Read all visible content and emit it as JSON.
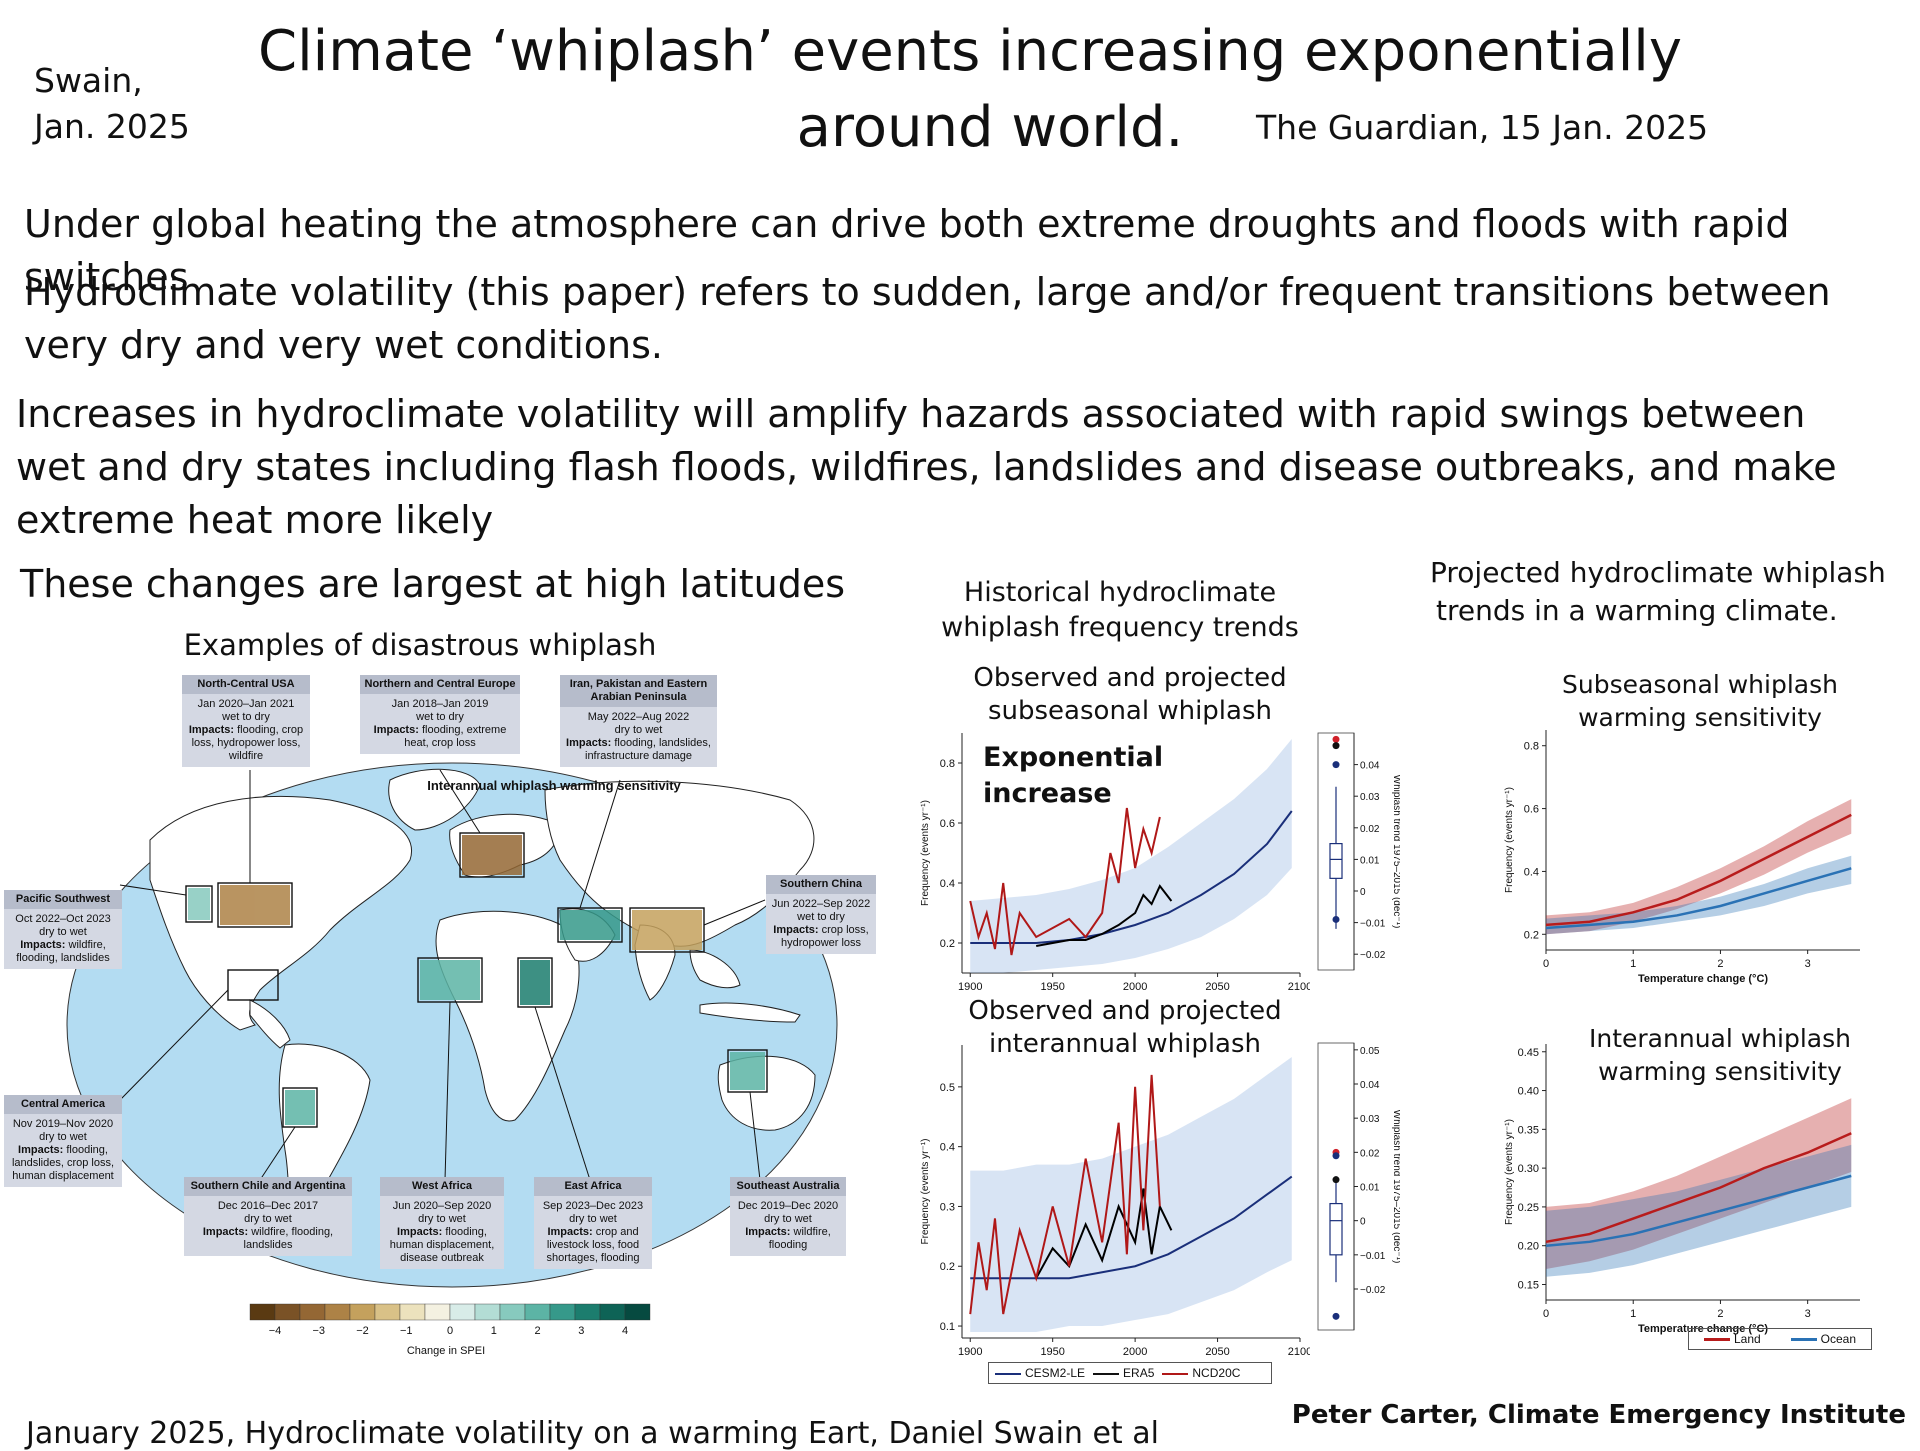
{
  "header": {
    "author_line1": "Swain,",
    "author_line2": "Jan. 2025",
    "title_line1": "Climate ‘whiplash’ events increasing exponentially",
    "title_line2": "around world.",
    "source": "The Guardian, 15 Jan. 2025"
  },
  "text": {
    "p1": "Under global heating the atmosphere can drive both extreme droughts and floods with rapid switches",
    "p2_line1": "Hydroclimate volatility (this paper) refers to sudden, large and/or frequent transitions between",
    "p2_line2": "very dry and very wet conditions.",
    "p3_line1": "Increases in hydroclimate volatility will amplify hazards associated with rapid swings between",
    "p3_line2": "wet and dry states including flash floods, wildfires, landslides and disease outbreaks, and make",
    "p3_line3": "extreme heat more likely",
    "p4": "These changes are largest at high latitudes"
  },
  "map": {
    "title": "Examples of disastrous whiplash",
    "inner_title": "Interannual whiplash warming sensitivity",
    "colorbar_ticks": [
      "−4",
      "−3",
      "−2",
      "−1",
      "0",
      "1",
      "2",
      "3",
      "4"
    ],
    "colorbar_label": "Change in SPEI",
    "colorbar_colors": [
      "#5a3a12",
      "#7a5226",
      "#946734",
      "#ad8246",
      "#c4a15d",
      "#d9c187",
      "#ece2bd",
      "#f4f1e1",
      "#d8ece8",
      "#b3ddd5",
      "#87cabe",
      "#5cb4a5",
      "#36998a",
      "#1c7d6e",
      "#0e6356",
      "#064a40"
    ],
    "ocean_color": "#b3dcf2",
    "regions": [
      {
        "name": "North-Central USA",
        "dates": "Jan 2020–Jan 2021",
        "type": "wet to dry",
        "impacts_label": "Impacts:",
        "impacts": "flooding, crop loss, hydropower loss, wildfire"
      },
      {
        "name": "Northern and Central Europe",
        "dates": "Jan 2018–Jan 2019",
        "type": "wet to dry",
        "impacts_label": "Impacts:",
        "impacts": "flooding, extreme heat, crop loss"
      },
      {
        "name": "Iran, Pakistan and Eastern Arabian Peninsula",
        "dates": "May 2022–Aug 2022",
        "type": "dry to wet",
        "impacts_label": "Impacts:",
        "impacts": "flooding, landslides, infrastructure damage"
      },
      {
        "name": "Pacific Southwest",
        "dates": "Oct 2022–Oct 2023",
        "type": "dry to wet",
        "impacts_label": "Impacts:",
        "impacts": "wildfire, flooding, landslides"
      },
      {
        "name": "Southern China",
        "dates": "Jun 2022–Sep 2022",
        "type": "wet to dry",
        "impacts_label": "Impacts:",
        "impacts": "crop loss, hydropower loss"
      },
      {
        "name": "Central America",
        "dates": "Nov 2019–Nov 2020",
        "type": "dry to wet",
        "impacts_label": "Impacts:",
        "impacts": "flooding, landslides, crop loss, human displacement"
      },
      {
        "name": "Southern Chile and Argentina",
        "dates": "Dec 2016–Dec 2017",
        "type": "dry to wet",
        "impacts_label": "Impacts:",
        "impacts": "wildfire, flooding, landslides"
      },
      {
        "name": "West Africa",
        "dates": "Jun 2020–Sep 2020",
        "type": "dry to wet",
        "impacts_label": "Impacts:",
        "impacts": "flooding, human displacement, disease outbreak"
      },
      {
        "name": "East Africa",
        "dates": "Sep 2023–Dec 2023",
        "type": "dry to wet",
        "impacts_label": "Impacts:",
        "impacts": "crop and livestock loss, food shortages, flooding"
      },
      {
        "name": "Southeast Australia",
        "dates": "Dec 2019–Dec 2020",
        "type": "dry to wet",
        "impacts_label": "Impacts:",
        "impacts": "wildfire, flooding"
      }
    ]
  },
  "historical": {
    "heading_line1": "Historical hydroclimate",
    "heading_line2": "whiplash frequency trends",
    "sub_title_line1": "Observed and projected",
    "sub_title_line2": "subseasonal whiplash",
    "annotation_line1": "Exponential",
    "annotation_line2": "increase",
    "inter_title_line1": "Observed and projected",
    "inter_title_line2": "interannual whiplash",
    "ylabel": "Frequency (events yr⁻¹)",
    "box_ylabel": "Whiplash trend 1975–2015 (dec⁻¹)",
    "legend": {
      "cesm": "CESM2-LE",
      "era5": "ERA5",
      "ncd": "NCD20C"
    }
  },
  "projected": {
    "heading_line1": "Projected hydroclimate whiplash",
    "heading_line2": "trends in a warming climate.",
    "sub_title_line1": "Subseasonal whiplash",
    "sub_title_line2": "warming sensitivity",
    "inter_title_line1": "Interannual whiplash",
    "inter_title_line2": "warming sensitivity",
    "ylabel": "Frequency (events yr⁻¹)",
    "xlabel_top": "Temperature change (°C)",
    "xlabel_bottom": "Temperature change (°C)",
    "legend": {
      "land": "Land",
      "ocean": "Ocean"
    }
  },
  "chart_data": [
    {
      "type": "line",
      "title": "Observed and projected subseasonal whiplash",
      "xlabel": "",
      "ylabel": "Frequency (events yr⁻¹)",
      "xlim": [
        1895,
        2100
      ],
      "ylim": [
        0.1,
        0.9
      ],
      "xticks": [
        1900,
        1950,
        2000,
        2050,
        2100
      ],
      "yticks": [
        0.2,
        0.4,
        0.6,
        0.8
      ],
      "series": [
        {
          "name": "CESM2-LE",
          "color": "#1a2f7a",
          "x": [
            1900,
            1920,
            1940,
            1960,
            1980,
            2000,
            2020,
            2040,
            2060,
            2080,
            2095
          ],
          "y": [
            0.2,
            0.2,
            0.2,
            0.21,
            0.23,
            0.26,
            0.3,
            0.36,
            0.43,
            0.53,
            0.64
          ],
          "band_lower": [
            0.1,
            0.1,
            0.11,
            0.12,
            0.13,
            0.15,
            0.18,
            0.22,
            0.28,
            0.36,
            0.45
          ],
          "band_upper": [
            0.34,
            0.35,
            0.36,
            0.38,
            0.41,
            0.45,
            0.52,
            0.6,
            0.68,
            0.78,
            0.88
          ]
        },
        {
          "name": "ERA5",
          "color": "#000000",
          "x": [
            1940,
            1950,
            1960,
            1970,
            1980,
            1990,
            2000,
            2005,
            2010,
            2015,
            2022
          ],
          "y": [
            0.19,
            0.2,
            0.21,
            0.21,
            0.23,
            0.26,
            0.3,
            0.36,
            0.33,
            0.39,
            0.34
          ]
        },
        {
          "name": "NCD20C",
          "color": "#b01818",
          "x": [
            1900,
            1905,
            1910,
            1915,
            1920,
            1925,
            1930,
            1940,
            1950,
            1960,
            1970,
            1980,
            1985,
            1990,
            1995,
            2000,
            2005,
            2010,
            2015
          ],
          "y": [
            0.34,
            0.22,
            0.3,
            0.18,
            0.4,
            0.16,
            0.3,
            0.22,
            0.25,
            0.28,
            0.22,
            0.3,
            0.5,
            0.4,
            0.65,
            0.45,
            0.58,
            0.5,
            0.62
          ]
        }
      ]
    },
    {
      "type": "line",
      "title": "Observed and projected interannual whiplash",
      "xlabel": "",
      "ylabel": "Frequency (events yr⁻¹)",
      "xlim": [
        1895,
        2100
      ],
      "ylim": [
        0.08,
        0.57
      ],
      "xticks": [
        1900,
        1950,
        2000,
        2050,
        2100
      ],
      "yticks": [
        0.1,
        0.2,
        0.3,
        0.4,
        0.5
      ],
      "series": [
        {
          "name": "CESM2-LE",
          "color": "#1a2f7a",
          "x": [
            1900,
            1920,
            1940,
            1960,
            1980,
            2000,
            2020,
            2040,
            2060,
            2080,
            2095
          ],
          "y": [
            0.18,
            0.18,
            0.18,
            0.18,
            0.19,
            0.2,
            0.22,
            0.25,
            0.28,
            0.32,
            0.35
          ],
          "band_lower": [
            0.09,
            0.09,
            0.09,
            0.1,
            0.1,
            0.11,
            0.12,
            0.14,
            0.16,
            0.19,
            0.21
          ],
          "band_upper": [
            0.36,
            0.36,
            0.37,
            0.37,
            0.38,
            0.4,
            0.42,
            0.45,
            0.48,
            0.52,
            0.55
          ]
        },
        {
          "name": "ERA5",
          "color": "#000000",
          "x": [
            1940,
            1950,
            1960,
            1970,
            1980,
            1990,
            2000,
            2005,
            2010,
            2015,
            2022
          ],
          "y": [
            0.18,
            0.23,
            0.2,
            0.27,
            0.21,
            0.3,
            0.24,
            0.33,
            0.22,
            0.3,
            0.26
          ]
        },
        {
          "name": "NCD20C",
          "color": "#b01818",
          "x": [
            1900,
            1905,
            1910,
            1915,
            1920,
            1930,
            1940,
            1950,
            1960,
            1970,
            1980,
            1990,
            1995,
            2000,
            2005,
            2010,
            2015
          ],
          "y": [
            0.12,
            0.24,
            0.16,
            0.28,
            0.12,
            0.26,
            0.18,
            0.3,
            0.2,
            0.38,
            0.24,
            0.44,
            0.22,
            0.5,
            0.26,
            0.52,
            0.3
          ]
        }
      ]
    },
    {
      "type": "line",
      "title": "Subseasonal whiplash warming sensitivity",
      "xlabel": "Temperature change (°C)",
      "ylabel": "Frequency (events yr⁻¹)",
      "xlim": [
        0,
        3.6
      ],
      "ylim": [
        0.15,
        0.85
      ],
      "xticks": [
        0,
        1,
        2,
        3
      ],
      "yticks": [
        0.2,
        0.4,
        0.6,
        0.8
      ],
      "series": [
        {
          "name": "Land",
          "color": "#b81c1c",
          "x": [
            0,
            0.5,
            1,
            1.5,
            2,
            2.5,
            3,
            3.5
          ],
          "y": [
            0.23,
            0.24,
            0.27,
            0.31,
            0.37,
            0.44,
            0.51,
            0.58
          ],
          "band_lower": [
            0.2,
            0.21,
            0.24,
            0.28,
            0.33,
            0.39,
            0.46,
            0.52
          ],
          "band_upper": [
            0.26,
            0.27,
            0.3,
            0.35,
            0.41,
            0.48,
            0.56,
            0.63
          ]
        },
        {
          "name": "Ocean",
          "color": "#2a72b5",
          "x": [
            0,
            0.5,
            1,
            1.5,
            2,
            2.5,
            3,
            3.5
          ],
          "y": [
            0.22,
            0.23,
            0.24,
            0.26,
            0.29,
            0.33,
            0.37,
            0.41
          ],
          "band_lower": [
            0.2,
            0.21,
            0.22,
            0.24,
            0.26,
            0.29,
            0.33,
            0.36
          ],
          "band_upper": [
            0.25,
            0.26,
            0.27,
            0.29,
            0.32,
            0.36,
            0.41,
            0.45
          ]
        }
      ]
    },
    {
      "type": "line",
      "title": "Interannual whiplash warming sensitivity",
      "xlabel": "Temperature change (°C)",
      "ylabel": "Frequency (events yr⁻¹)",
      "xlim": [
        0,
        3.6
      ],
      "ylim": [
        0.13,
        0.46
      ],
      "xticks": [
        0,
        1,
        2,
        3
      ],
      "yticks": [
        0.15,
        0.2,
        0.25,
        0.3,
        0.35,
        0.4,
        0.45
      ],
      "series": [
        {
          "name": "Land",
          "color": "#b81c1c",
          "x": [
            0,
            0.5,
            1,
            1.5,
            2,
            2.5,
            3,
            3.5
          ],
          "y": [
            0.205,
            0.215,
            0.235,
            0.255,
            0.275,
            0.3,
            0.32,
            0.345
          ],
          "band_lower": [
            0.17,
            0.18,
            0.195,
            0.215,
            0.235,
            0.255,
            0.275,
            0.295
          ],
          "band_upper": [
            0.25,
            0.255,
            0.27,
            0.29,
            0.315,
            0.34,
            0.365,
            0.39
          ]
        },
        {
          "name": "Ocean",
          "color": "#2a72b5",
          "x": [
            0,
            0.5,
            1,
            1.5,
            2,
            2.5,
            3,
            3.5
          ],
          "y": [
            0.2,
            0.205,
            0.215,
            0.23,
            0.245,
            0.26,
            0.275,
            0.29
          ],
          "band_lower": [
            0.16,
            0.165,
            0.175,
            0.19,
            0.205,
            0.22,
            0.235,
            0.25
          ],
          "band_upper": [
            0.245,
            0.25,
            0.26,
            0.27,
            0.285,
            0.3,
            0.315,
            0.33
          ]
        }
      ]
    },
    {
      "type": "scatter",
      "title": "",
      "ylabel": "Whiplash trend 1975–2015 (dec⁻¹)",
      "ylim": [
        -0.025,
        0.05
      ],
      "yticks": [
        -0.02,
        -0.01,
        0,
        0.01,
        0.02,
        0.03,
        0.04
      ],
      "box": {
        "min": -0.012,
        "q1": 0.004,
        "median": 0.01,
        "q3": 0.015,
        "max": 0.033
      },
      "points": [
        {
          "y": 0.048,
          "color": "#d0202a"
        },
        {
          "y": 0.046,
          "color": "#111111"
        },
        {
          "y": 0.04,
          "color": "#1a2f7a"
        },
        {
          "y": -0.009,
          "color": "#1a2f7a"
        }
      ]
    },
    {
      "type": "scatter",
      "title": "",
      "ylabel": "Whiplash trend 1975–2015 (dec⁻¹)",
      "ylim": [
        -0.032,
        0.052
      ],
      "yticks": [
        -0.02,
        -0.01,
        0,
        0.01,
        0.02,
        0.03,
        0.04,
        0.05
      ],
      "box": {
        "min": -0.018,
        "q1": -0.01,
        "median": 0.0,
        "q3": 0.005,
        "max": 0.013
      },
      "points": [
        {
          "y": 0.02,
          "color": "#d0202a"
        },
        {
          "y": 0.019,
          "color": "#1a2f7a"
        },
        {
          "y": 0.012,
          "color": "#111111"
        },
        {
          "y": -0.028,
          "color": "#1a2f7a"
        }
      ]
    }
  ],
  "footer": {
    "citation": "January 2025, Hydroclimate volatility on a warming Eart, Daniel Swain et al",
    "credit": "Peter Carter, Climate  Emergency Institute"
  }
}
